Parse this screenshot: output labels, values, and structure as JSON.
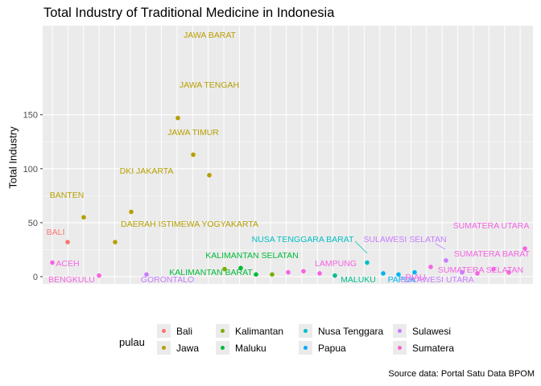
{
  "chart_data": {
    "type": "scatter",
    "title": "Total Industry of Traditional Medicine in Indonesia",
    "xlabel": "",
    "ylabel": "Total Industry",
    "caption": "Source data: Portal Satu Data BPOM",
    "y_ticks": [
      0,
      50,
      100,
      150
    ],
    "ylim": [
      -4,
      152
    ],
    "grid": true,
    "x_ticks_visible": false,
    "legend_position": "bottom",
    "legend_title": "pulau",
    "series": [
      {
        "name": "Bali",
        "color": "#F8766D",
        "points": [
          {
            "label": "BALI",
            "value": 32
          }
        ]
      },
      {
        "name": "Jawa",
        "color": "#B79F00",
        "points": [
          {
            "label": "BANTEN",
            "value": 55
          },
          {
            "label": "DAERAH ISTIMEWA YOGYAKARTA",
            "value": 32
          },
          {
            "label": "DKI JAKARTA",
            "value": 60
          },
          {
            "label": "JAWA BARAT",
            "value": 147
          },
          {
            "label": "JAWA TENGAH",
            "value": 113
          },
          {
            "label": "JAWA TIMUR",
            "value": 94
          }
        ]
      },
      {
        "name": "Kalimantan",
        "color": "#00BA38",
        "points": [
          {
            "label": "KALIMANTAN SELATAN",
            "value": 8
          },
          {
            "label": "KALIMANTAN BARAT",
            "value": 2
          }
        ]
      },
      {
        "name": "Maluku",
        "color": "#00C08B",
        "points": [
          {
            "label": "MALUKU",
            "value": 1
          }
        ]
      },
      {
        "name": "Nusa Tenggara",
        "color": "#00BFC4",
        "points": [
          {
            "label": "NUSA TENGGARA BARAT",
            "value": 13
          }
        ]
      },
      {
        "name": "Papua",
        "color": "#00B4F0",
        "points": [
          {
            "label": "PAPUA",
            "value": 2
          }
        ]
      },
      {
        "name": "Sulawesi",
        "color": "#C77CFF",
        "points": [
          {
            "label": "GORONTALO",
            "value": 2
          },
          {
            "label": "SULAWESI SELATAN",
            "value": 15
          },
          {
            "label": "SULAWESI UTARA",
            "value": 4
          }
        ]
      },
      {
        "name": "Sumatera",
        "color": "#F564E3",
        "points": [
          {
            "label": "ACEH",
            "value": 13
          },
          {
            "label": "BENGKULU",
            "value": 1
          },
          {
            "label": "LAMPUNG",
            "value": 3
          },
          {
            "label": "RIAU",
            "value": 9
          },
          {
            "label": "SUMATERA BARAT",
            "value": 7
          },
          {
            "label": "SUMATERA SELATAN",
            "value": 4
          },
          {
            "label": "SUMATERA UTARA",
            "value": 26
          }
        ]
      }
    ],
    "unlabeled_points": [
      {
        "group": "Kalimantan",
        "color": "#7CAE00",
        "value": 7
      },
      {
        "group": "Kalimantan",
        "color": "#7CAE00",
        "value": 2
      },
      {
        "group": "Sumatera",
        "color": "#F564E3",
        "value": 4
      },
      {
        "group": "Sumatera",
        "color": "#F564E3",
        "value": 5
      },
      {
        "group": "Papua",
        "color": "#00B4F0",
        "value": 3
      },
      {
        "group": "Papua",
        "color": "#00B4F0",
        "value": 4
      },
      {
        "group": "Sumatera",
        "color": "#F564E3",
        "value": 3
      },
      {
        "group": "Sumatera",
        "color": "#F564E3",
        "value": 4
      }
    ]
  },
  "legend": {
    "title": "pulau",
    "items": [
      {
        "label": "Bali",
        "color": "#F8766D"
      },
      {
        "label": "Jawa",
        "color": "#B79F00"
      },
      {
        "label": "Kalimantan",
        "color": "#7CAE00"
      },
      {
        "label": "Maluku",
        "color": "#00BA38"
      },
      {
        "label": "Nusa Tenggara",
        "color": "#00BFC4"
      },
      {
        "label": "Papua",
        "color": "#00A9FF"
      },
      {
        "label": "Sulawesi",
        "color": "#C77CFF"
      },
      {
        "label": "Sumatera",
        "color": "#FF61CC"
      }
    ]
  }
}
